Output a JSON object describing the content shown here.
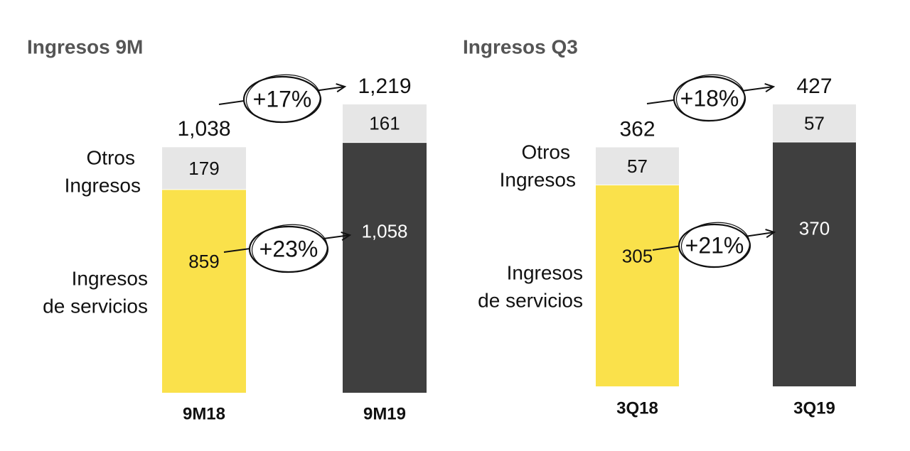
{
  "colors": {
    "yellow": "#FAE14B",
    "dark": "#3F3F3F",
    "light_gray": "#E6E6E6",
    "title_gray": "#555555",
    "text": "#111111",
    "white_text": "#FFFFFF"
  },
  "chart_data": [
    {
      "type": "bar",
      "stacked": true,
      "title": "Ingresos 9M",
      "categories": [
        "9M18",
        "9M19"
      ],
      "series": [
        {
          "name": "Ingresos de servicios",
          "values": [
            859,
            1058
          ]
        },
        {
          "name": "Otros Ingresos",
          "values": [
            179,
            161
          ]
        }
      ],
      "totals": [
        "1,038",
        "1,219"
      ],
      "segment_labels": [
        [
          "859",
          "179"
        ],
        [
          "1,058",
          "161"
        ]
      ],
      "series_labels": {
        "otros": [
          "Otros",
          "Ingresos"
        ],
        "servicios": [
          "Ingresos",
          "de servicios"
        ]
      },
      "annotations": {
        "total_growth": "+17%",
        "services_growth": "+23%"
      }
    },
    {
      "type": "bar",
      "stacked": true,
      "title": "Ingresos Q3",
      "categories": [
        "3Q18",
        "3Q19"
      ],
      "series": [
        {
          "name": "Ingresos de servicios",
          "values": [
            305,
            370
          ]
        },
        {
          "name": "Otros Ingresos",
          "values": [
            57,
            57
          ]
        }
      ],
      "totals": [
        "362",
        "427"
      ],
      "segment_labels": [
        [
          "305",
          "57"
        ],
        [
          "370",
          "57"
        ]
      ],
      "series_labels": {
        "otros": [
          "Otros",
          "Ingresos"
        ],
        "servicios": [
          "Ingresos",
          "de servicios"
        ]
      },
      "annotations": {
        "total_growth": "+18%",
        "services_growth": "+21%"
      }
    }
  ]
}
